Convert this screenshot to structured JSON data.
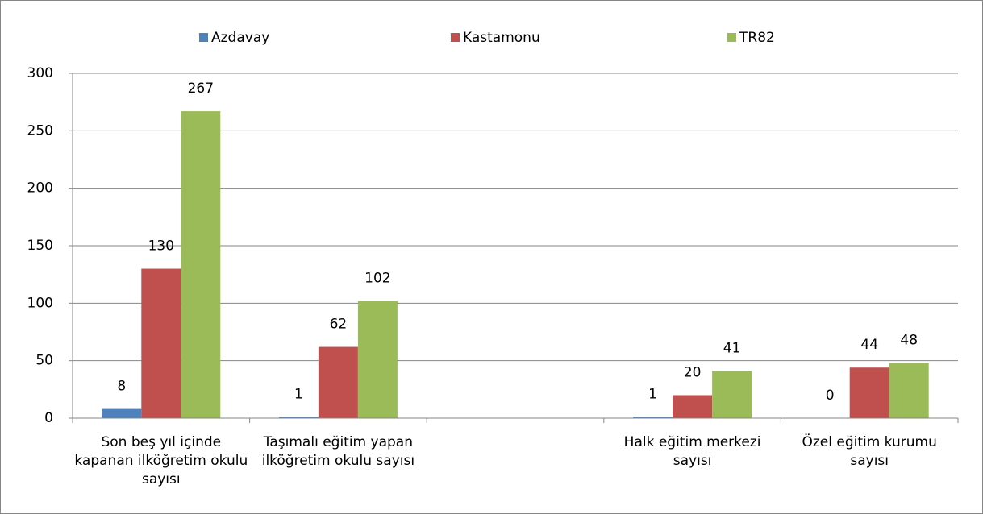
{
  "chart_data": {
    "type": "bar",
    "categories": [
      "Son beş yıl içinde kapanan ilköğretim okulu sayısı",
      "Taşımalı eğitim yapan ilköğretim okulu sayısı",
      null,
      "Halk eğitim merkezi sayısı",
      "Özel eğitim kurumu sayısı"
    ],
    "series": [
      {
        "name": "Azdavay",
        "color": "#4f81bd",
        "values": [
          8,
          1,
          null,
          1,
          0
        ]
      },
      {
        "name": "Kastamonu",
        "color": "#c0504d",
        "values": [
          130,
          62,
          null,
          20,
          44
        ]
      },
      {
        "name": "TR82",
        "color": "#9bbb59",
        "values": [
          267,
          102,
          null,
          41,
          48
        ]
      }
    ],
    "ylim": [
      0,
      300
    ],
    "yticks": [
      0,
      50,
      100,
      150,
      200,
      250,
      300
    ],
    "grid": true,
    "legend": "top"
  }
}
